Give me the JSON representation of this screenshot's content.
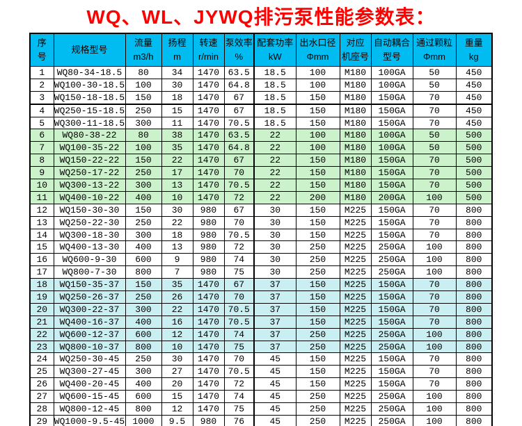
{
  "title": "WQ、WL、JYWQ排污泵性能参数表：",
  "colors": {
    "title_red": "#ff0000",
    "header_bg": "#00bcf0",
    "green_row": "#ccf2cc",
    "cyan_row": "#c9eff2",
    "border": "#000000"
  },
  "table": {
    "columns": [
      {
        "key": "index",
        "lines": [
          "序",
          "号"
        ]
      },
      {
        "key": "model",
        "lines": [
          "规格型号"
        ]
      },
      {
        "key": "flow",
        "lines": [
          "流量",
          "m3/h"
        ]
      },
      {
        "key": "head",
        "lines": [
          "扬程",
          "m"
        ]
      },
      {
        "key": "speed",
        "lines": [
          "转速",
          "r/min"
        ]
      },
      {
        "key": "efficiency",
        "lines": [
          "泵效率",
          "%"
        ]
      },
      {
        "key": "power",
        "lines": [
          "配套功率",
          "kW"
        ]
      },
      {
        "key": "outlet",
        "lines": [
          "出水口径",
          "Φmm"
        ]
      },
      {
        "key": "frame",
        "lines": [
          "对应",
          "机座号"
        ]
      },
      {
        "key": "coupling",
        "lines": [
          "自动耦合",
          "型号"
        ]
      },
      {
        "key": "particle",
        "lines": [
          "通过颗粒",
          "Φmm"
        ]
      },
      {
        "key": "weight",
        "lines": [
          "重量",
          "kg"
        ]
      }
    ],
    "rows": [
      {
        "bg": "white",
        "thick_bottom": false,
        "cells": [
          "1",
          "WQ80-34-18.5",
          "80",
          "34",
          "1470",
          "63.5",
          "18.5",
          "100",
          "M180",
          "100GA",
          "50",
          "450"
        ]
      },
      {
        "bg": "white",
        "thick_bottom": false,
        "cells": [
          "2",
          "WQ100-30-18.5",
          "100",
          "30",
          "1470",
          "64.8",
          "18.5",
          "100",
          "M180",
          "100GA",
          "50",
          "450"
        ]
      },
      {
        "bg": "white",
        "thick_bottom": true,
        "cells": [
          "3",
          "WQ150-18-18.5",
          "150",
          "18",
          "1470",
          "67",
          "18.5",
          "150",
          "M180",
          "150GA",
          "70",
          "450"
        ]
      },
      {
        "bg": "white",
        "thick_bottom": false,
        "cells": [
          "4",
          "WQ250-15-18.5",
          "250",
          "15",
          "1470",
          "67",
          "18.5",
          "150",
          "M180",
          "150GA",
          "70",
          "450"
        ]
      },
      {
        "bg": "white",
        "thick_bottom": false,
        "cells": [
          "5",
          "WQ300-11-18.5",
          "300",
          "11",
          "1470",
          "70.5",
          "18.5",
          "150",
          "M180",
          "150GA",
          "70",
          "450"
        ]
      },
      {
        "bg": "green",
        "thick_bottom": false,
        "cells": [
          "6",
          "WQ80-38-22",
          "80",
          "38",
          "1470",
          "63.5",
          "22",
          "100",
          "M180",
          "100GA",
          "50",
          "500"
        ]
      },
      {
        "bg": "green",
        "thick_bottom": false,
        "cells": [
          "7",
          "WQ100-35-22",
          "100",
          "35",
          "1470",
          "64.8",
          "22",
          "100",
          "M180",
          "100GA",
          "50",
          "500"
        ]
      },
      {
        "bg": "green",
        "thick_bottom": false,
        "cells": [
          "8",
          "WQ150-22-22",
          "150",
          "22",
          "1470",
          "67",
          "22",
          "150",
          "M180",
          "150GA",
          "70",
          "500"
        ]
      },
      {
        "bg": "green",
        "thick_bottom": false,
        "cells": [
          "9",
          "WQ250-17-22",
          "250",
          "17",
          "1470",
          "70",
          "22",
          "150",
          "M180",
          "150GA",
          "70",
          "500"
        ]
      },
      {
        "bg": "green",
        "thick_bottom": false,
        "cells": [
          "10",
          "WQ300-13-22",
          "300",
          "13",
          "1470",
          "70.5",
          "22",
          "150",
          "M180",
          "150GA",
          "70",
          "500"
        ]
      },
      {
        "bg": "green",
        "thick_bottom": false,
        "cells": [
          "11",
          "WQ400-10-22",
          "400",
          "10",
          "1470",
          "72",
          "22",
          "200",
          "M180",
          "200GA",
          "100",
          "500"
        ]
      },
      {
        "bg": "white",
        "thick_bottom": false,
        "cells": [
          "12",
          "WQ150-30-30",
          "150",
          "30",
          "980",
          "67",
          "30",
          "150",
          "M225",
          "150GA",
          "70",
          "800"
        ]
      },
      {
        "bg": "white",
        "thick_bottom": false,
        "cells": [
          "13",
          "WQ250-22-30",
          "250",
          "22",
          "980",
          "70",
          "30",
          "150",
          "M225",
          "150GA",
          "70",
          "800"
        ]
      },
      {
        "bg": "white",
        "thick_bottom": false,
        "cells": [
          "14",
          "WQ300-18-30",
          "300",
          "18",
          "980",
          "70.5",
          "30",
          "150",
          "M225",
          "150GA",
          "70",
          "800"
        ]
      },
      {
        "bg": "white",
        "thick_bottom": false,
        "cells": [
          "15",
          "WQ400-13-30",
          "400",
          "13",
          "980",
          "72",
          "30",
          "250",
          "M225",
          "250GA",
          "100",
          "800"
        ]
      },
      {
        "bg": "white",
        "thick_bottom": false,
        "cells": [
          "16",
          "WQ600-9-30",
          "600",
          "9",
          "980",
          "74",
          "30",
          "250",
          "M225",
          "250GA",
          "100",
          "800"
        ]
      },
      {
        "bg": "white",
        "thick_bottom": false,
        "cells": [
          "17",
          "WQ800-7-30",
          "800",
          "7",
          "980",
          "75",
          "30",
          "250",
          "M225",
          "250GA",
          "100",
          "800"
        ]
      },
      {
        "bg": "cyan",
        "thick_bottom": false,
        "cells": [
          "18",
          "WQ150-35-37",
          "150",
          "35",
          "1470",
          "67",
          "37",
          "150",
          "M225",
          "150GA",
          "70",
          "800"
        ]
      },
      {
        "bg": "cyan",
        "thick_bottom": false,
        "cells": [
          "19",
          "WQ250-26-37",
          "250",
          "26",
          "1470",
          "70",
          "37",
          "150",
          "M225",
          "150GA",
          "70",
          "800"
        ]
      },
      {
        "bg": "cyan",
        "thick_bottom": false,
        "cells": [
          "20",
          "WQ300-22-37",
          "300",
          "22",
          "1470",
          "70.5",
          "37",
          "150",
          "M225",
          "150GA",
          "70",
          "800"
        ]
      },
      {
        "bg": "cyan",
        "thick_bottom": false,
        "cells": [
          "21",
          "WQ400-16-37",
          "400",
          "16",
          "1470",
          "70.5",
          "37",
          "150",
          "M225",
          "150GA",
          "70",
          "800"
        ]
      },
      {
        "bg": "cyan",
        "thick_bottom": false,
        "cells": [
          "22",
          "WQ600-12-37",
          "600",
          "12",
          "1470",
          "74",
          "37",
          "250",
          "M225",
          "250GA",
          "100",
          "800"
        ]
      },
      {
        "bg": "cyan",
        "thick_bottom": false,
        "cells": [
          "23",
          "WQ800-10-37",
          "800",
          "10",
          "1470",
          "75",
          "37",
          "250",
          "M225",
          "250GA",
          "100",
          "800"
        ]
      },
      {
        "bg": "white",
        "thick_bottom": false,
        "cells": [
          "24",
          "WQ250-30-45",
          "250",
          "30",
          "1470",
          "70",
          "45",
          "150",
          "M225",
          "150GA",
          "70",
          "800"
        ]
      },
      {
        "bg": "white",
        "thick_bottom": false,
        "cells": [
          "25",
          "WQ300-27-45",
          "300",
          "27",
          "1470",
          "70.5",
          "45",
          "150",
          "M225",
          "150GA",
          "70",
          "800"
        ]
      },
      {
        "bg": "white",
        "thick_bottom": false,
        "cells": [
          "26",
          "WQ400-20-45",
          "400",
          "20",
          "1470",
          "72",
          "45",
          "150",
          "M225",
          "150GA",
          "70",
          "800"
        ]
      },
      {
        "bg": "white",
        "thick_bottom": false,
        "cells": [
          "27",
          "WQ600-15-45",
          "600",
          "15",
          "1470",
          "74",
          "45",
          "250",
          "M225",
          "250GA",
          "100",
          "800"
        ]
      },
      {
        "bg": "white",
        "thick_bottom": false,
        "cells": [
          "28",
          "WQ800-12-45",
          "800",
          "12",
          "1470",
          "75",
          "45",
          "250",
          "M225",
          "250GA",
          "100",
          "800"
        ]
      },
      {
        "bg": "white",
        "thick_bottom": false,
        "cells": [
          "29",
          "WQ1000-9.5-45",
          "1000",
          "9.5",
          "980",
          "76",
          "45",
          "250",
          "M225",
          "250GA",
          "100",
          "800"
        ]
      }
    ]
  }
}
